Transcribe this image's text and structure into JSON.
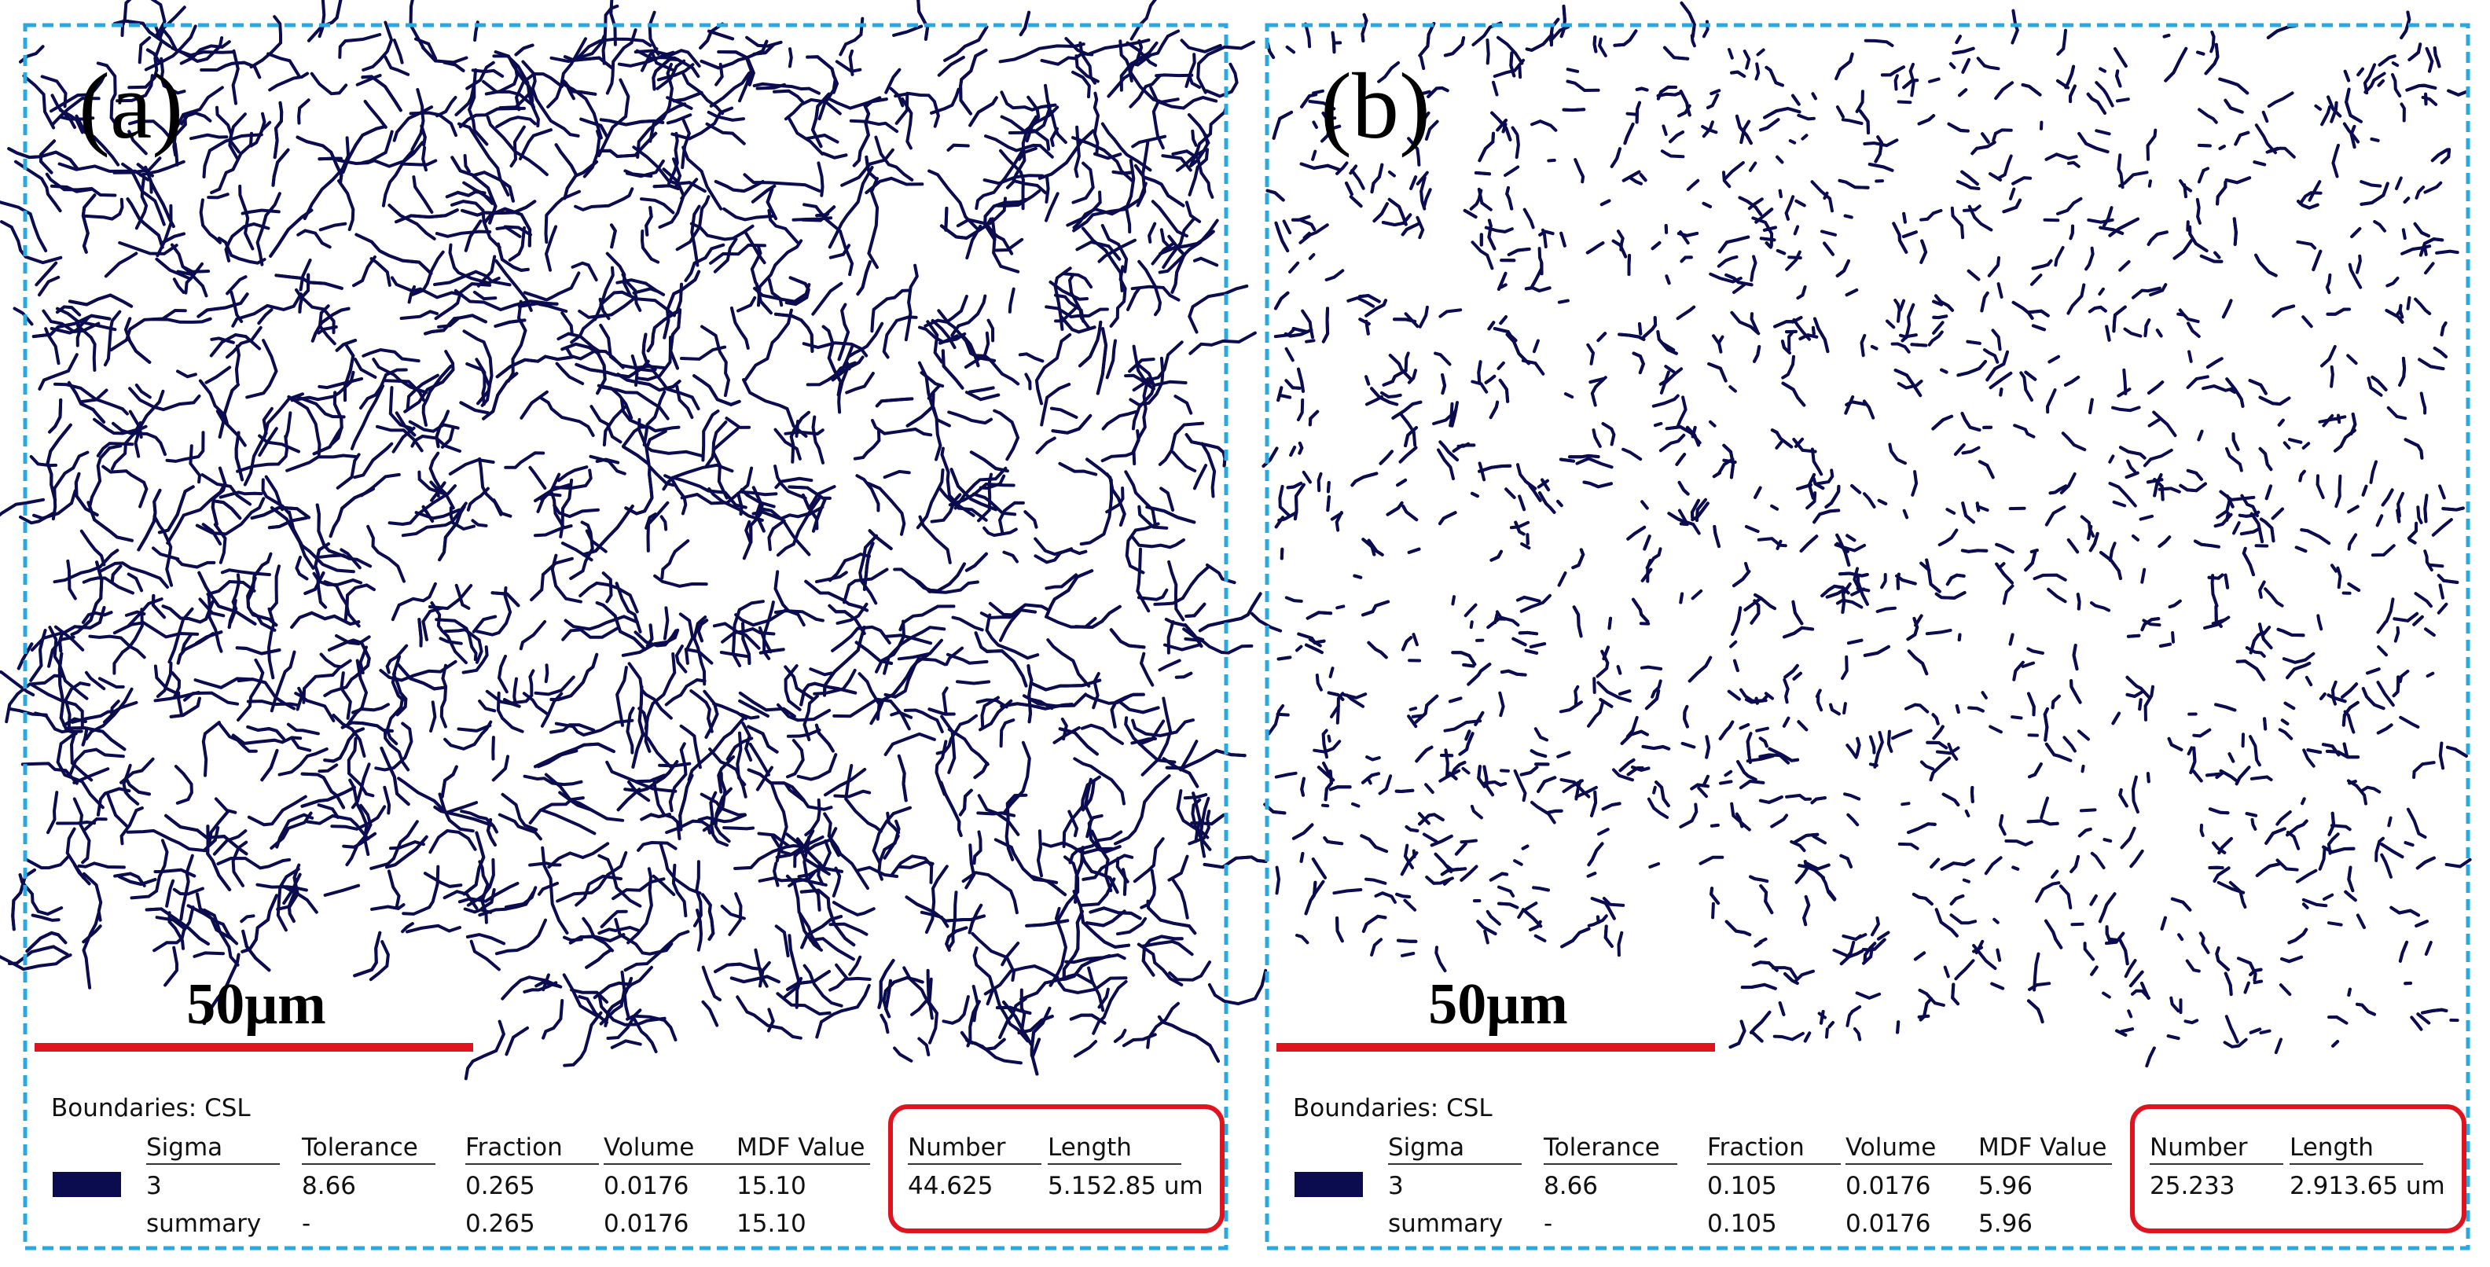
{
  "panels": [
    {
      "label": "(a)",
      "scale_bar": "50μm",
      "table": {
        "title": "Boundaries: CSL",
        "headers": [
          "Sigma",
          "Tolerance",
          "Fraction",
          "Volume",
          "MDF Value",
          "Number",
          "Length"
        ],
        "rows": [
          [
            "3",
            "8.66",
            "0.265",
            "0.0176",
            "15.10",
            "44.625",
            "5.152.85 um"
          ],
          [
            "summary",
            "-",
            "0.265",
            "0.0176",
            "15.10"
          ]
        ]
      }
    },
    {
      "label": "(b)",
      "scale_bar": "50μm",
      "table": {
        "title": "Boundaries: CSL",
        "headers": [
          "Sigma",
          "Tolerance",
          "Fraction",
          "Volume",
          "MDF Value",
          "Number",
          "Length"
        ],
        "rows": [
          [
            "3",
            "8.66",
            "0.105",
            "0.0176",
            "5.96",
            "25.233",
            "2.913.65 um"
          ],
          [
            "summary",
            "-",
            "0.105",
            "0.0176",
            "5.96"
          ]
        ]
      }
    }
  ]
}
